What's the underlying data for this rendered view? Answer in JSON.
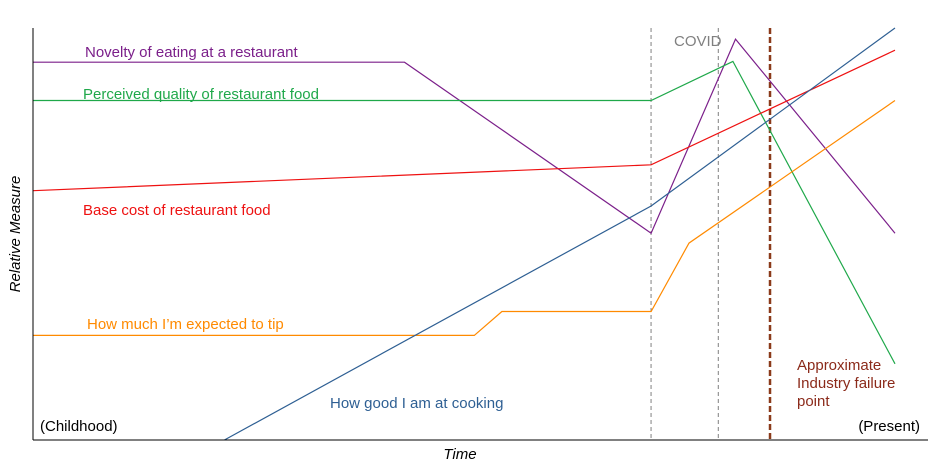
{
  "chart_data": {
    "type": "line",
    "xlabel": "Time",
    "ylabel": "Relative Measure",
    "xlim": [
      0,
      100
    ],
    "ylim": [
      0,
      100
    ],
    "x_start_label": "(Childhood)",
    "x_end_label": "(Present)",
    "grid": false,
    "series": [
      {
        "name": "Novelty of eating at a restaurant",
        "color": "#7b1f8a",
        "points": [
          [
            0,
            91.7
          ],
          [
            43.1,
            91.7
          ],
          [
            71.7,
            50.2
          ],
          [
            81.5,
            97.3
          ],
          [
            100,
            50.2
          ]
        ]
      },
      {
        "name": "Perceived quality of restaurant food",
        "color": "#1fa84a",
        "points": [
          [
            0,
            82.4
          ],
          [
            71.7,
            82.4
          ],
          [
            81.2,
            91.9
          ],
          [
            100,
            18.5
          ]
        ]
      },
      {
        "name": "Base cost of restaurant food",
        "color": "#ee1111",
        "points": [
          [
            0,
            60.5
          ],
          [
            71.7,
            66.8
          ],
          [
            100,
            94.6
          ]
        ]
      },
      {
        "name": "How much I’m expected to tip",
        "color": "#ff8a00",
        "points": [
          [
            0,
            25.4
          ],
          [
            51.2,
            25.4
          ],
          [
            54.4,
            31.2
          ],
          [
            71.7,
            31.2
          ],
          [
            76.1,
            47.8
          ],
          [
            100,
            82.4
          ]
        ]
      },
      {
        "name": "How good I am at cooking",
        "color": "#2e5f93",
        "points": [
          [
            22.2,
            0
          ],
          [
            71.7,
            56.8
          ],
          [
            100,
            100
          ]
        ]
      }
    ],
    "annotations": [
      {
        "type": "span",
        "label": "COVID",
        "x_start": 71.7,
        "x_end": 79.5,
        "color": "#808080"
      },
      {
        "type": "vline",
        "label": "Approximate Industry failure point",
        "label_lines": [
          "Approximate",
          "Industry failure",
          "point"
        ],
        "x": 85.5,
        "color": "#8b3a1a"
      }
    ]
  }
}
